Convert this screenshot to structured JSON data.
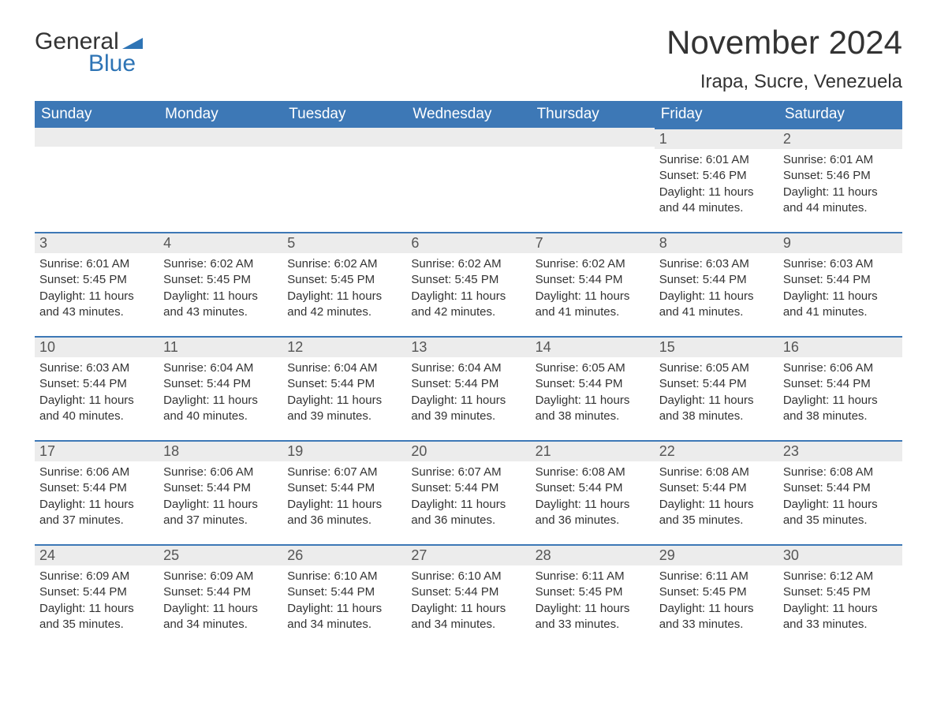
{
  "brand": {
    "word1": "General",
    "word2": "Blue",
    "accent_color": "#2e74b5"
  },
  "title": "November 2024",
  "location": "Irapa, Sucre, Venezuela",
  "colors": {
    "header_bg": "#3d78b6",
    "header_text": "#ffffff",
    "daynum_bg": "#ececec",
    "row_divider": "#3d78b6",
    "text": "#333333"
  },
  "weekdays": [
    "Sunday",
    "Monday",
    "Tuesday",
    "Wednesday",
    "Thursday",
    "Friday",
    "Saturday"
  ],
  "first_weekday_index": 5,
  "days": [
    {
      "n": 1,
      "sunrise": "6:01 AM",
      "sunset": "5:46 PM",
      "daylight": "11 hours and 44 minutes."
    },
    {
      "n": 2,
      "sunrise": "6:01 AM",
      "sunset": "5:46 PM",
      "daylight": "11 hours and 44 minutes."
    },
    {
      "n": 3,
      "sunrise": "6:01 AM",
      "sunset": "5:45 PM",
      "daylight": "11 hours and 43 minutes."
    },
    {
      "n": 4,
      "sunrise": "6:02 AM",
      "sunset": "5:45 PM",
      "daylight": "11 hours and 43 minutes."
    },
    {
      "n": 5,
      "sunrise": "6:02 AM",
      "sunset": "5:45 PM",
      "daylight": "11 hours and 42 minutes."
    },
    {
      "n": 6,
      "sunrise": "6:02 AM",
      "sunset": "5:45 PM",
      "daylight": "11 hours and 42 minutes."
    },
    {
      "n": 7,
      "sunrise": "6:02 AM",
      "sunset": "5:44 PM",
      "daylight": "11 hours and 41 minutes."
    },
    {
      "n": 8,
      "sunrise": "6:03 AM",
      "sunset": "5:44 PM",
      "daylight": "11 hours and 41 minutes."
    },
    {
      "n": 9,
      "sunrise": "6:03 AM",
      "sunset": "5:44 PM",
      "daylight": "11 hours and 41 minutes."
    },
    {
      "n": 10,
      "sunrise": "6:03 AM",
      "sunset": "5:44 PM",
      "daylight": "11 hours and 40 minutes."
    },
    {
      "n": 11,
      "sunrise": "6:04 AM",
      "sunset": "5:44 PM",
      "daylight": "11 hours and 40 minutes."
    },
    {
      "n": 12,
      "sunrise": "6:04 AM",
      "sunset": "5:44 PM",
      "daylight": "11 hours and 39 minutes."
    },
    {
      "n": 13,
      "sunrise": "6:04 AM",
      "sunset": "5:44 PM",
      "daylight": "11 hours and 39 minutes."
    },
    {
      "n": 14,
      "sunrise": "6:05 AM",
      "sunset": "5:44 PM",
      "daylight": "11 hours and 38 minutes."
    },
    {
      "n": 15,
      "sunrise": "6:05 AM",
      "sunset": "5:44 PM",
      "daylight": "11 hours and 38 minutes."
    },
    {
      "n": 16,
      "sunrise": "6:06 AM",
      "sunset": "5:44 PM",
      "daylight": "11 hours and 38 minutes."
    },
    {
      "n": 17,
      "sunrise": "6:06 AM",
      "sunset": "5:44 PM",
      "daylight": "11 hours and 37 minutes."
    },
    {
      "n": 18,
      "sunrise": "6:06 AM",
      "sunset": "5:44 PM",
      "daylight": "11 hours and 37 minutes."
    },
    {
      "n": 19,
      "sunrise": "6:07 AM",
      "sunset": "5:44 PM",
      "daylight": "11 hours and 36 minutes."
    },
    {
      "n": 20,
      "sunrise": "6:07 AM",
      "sunset": "5:44 PM",
      "daylight": "11 hours and 36 minutes."
    },
    {
      "n": 21,
      "sunrise": "6:08 AM",
      "sunset": "5:44 PM",
      "daylight": "11 hours and 36 minutes."
    },
    {
      "n": 22,
      "sunrise": "6:08 AM",
      "sunset": "5:44 PM",
      "daylight": "11 hours and 35 minutes."
    },
    {
      "n": 23,
      "sunrise": "6:08 AM",
      "sunset": "5:44 PM",
      "daylight": "11 hours and 35 minutes."
    },
    {
      "n": 24,
      "sunrise": "6:09 AM",
      "sunset": "5:44 PM",
      "daylight": "11 hours and 35 minutes."
    },
    {
      "n": 25,
      "sunrise": "6:09 AM",
      "sunset": "5:44 PM",
      "daylight": "11 hours and 34 minutes."
    },
    {
      "n": 26,
      "sunrise": "6:10 AM",
      "sunset": "5:44 PM",
      "daylight": "11 hours and 34 minutes."
    },
    {
      "n": 27,
      "sunrise": "6:10 AM",
      "sunset": "5:44 PM",
      "daylight": "11 hours and 34 minutes."
    },
    {
      "n": 28,
      "sunrise": "6:11 AM",
      "sunset": "5:45 PM",
      "daylight": "11 hours and 33 minutes."
    },
    {
      "n": 29,
      "sunrise": "6:11 AM",
      "sunset": "5:45 PM",
      "daylight": "11 hours and 33 minutes."
    },
    {
      "n": 30,
      "sunrise": "6:12 AM",
      "sunset": "5:45 PM",
      "daylight": "11 hours and 33 minutes."
    }
  ],
  "labels": {
    "sunrise": "Sunrise:",
    "sunset": "Sunset:",
    "daylight": "Daylight:"
  }
}
